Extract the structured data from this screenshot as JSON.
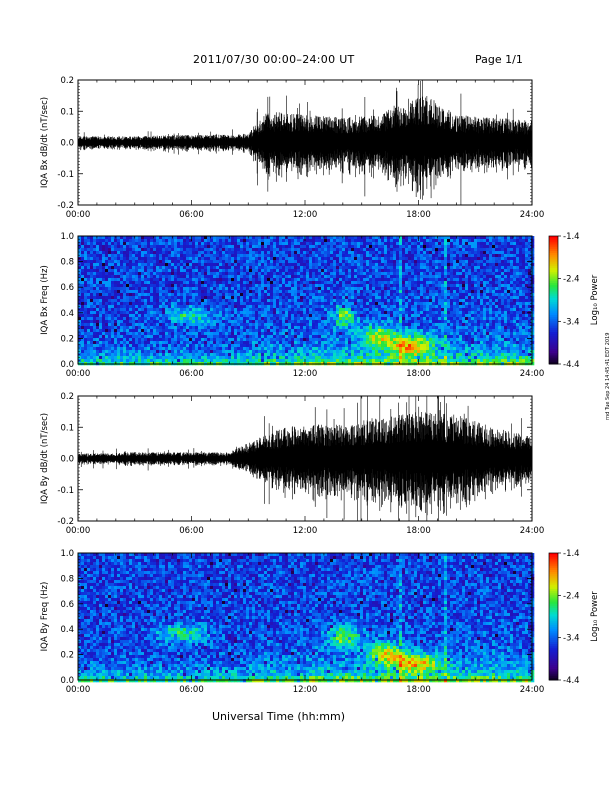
{
  "header": {
    "title": "2011/07/30  00:00–24:00 UT",
    "page": "Page 1/1"
  },
  "footer": {
    "xlabel": "Universal Time (hh:mm)",
    "stamp": "rnd Tue Sep 24 14:45:41 EDT 2019"
  },
  "chart_data": [
    {
      "type": "line",
      "ylabel": "IQA Bx dB/dt (nT/sec)",
      "xlim": [
        0,
        24
      ],
      "ylim": [
        -0.2,
        0.2
      ],
      "x_tick_labels": [
        "00:00",
        "06:00",
        "12:00",
        "18:00",
        "24:00"
      ],
      "y_ticks": [
        -0.2,
        -0.1,
        0.0,
        0.1,
        0.2
      ],
      "y_tick_labels": [
        "-0.2",
        "-0.1",
        "0.0",
        "0.1",
        "0.2"
      ],
      "envelope": {
        "hours": [
          0,
          3,
          6,
          8,
          9,
          9.7,
          10,
          12,
          14,
          16,
          17.5,
          18.5,
          20,
          22,
          24
        ],
        "amplitude": [
          0.02,
          0.02,
          0.025,
          0.025,
          0.03,
          0.08,
          0.1,
          0.09,
          0.08,
          0.09,
          0.15,
          0.15,
          0.09,
          0.08,
          0.07
        ]
      }
    },
    {
      "type": "heatmap",
      "ylabel": "IQA Bx Freq (Hz)",
      "xlim": [
        0,
        24
      ],
      "ylim": [
        0.0,
        1.0
      ],
      "x_tick_labels": [
        "00:00",
        "06:00",
        "12:00",
        "18:00",
        "24:00"
      ],
      "y_ticks": [
        0.0,
        0.2,
        0.4,
        0.6,
        0.8,
        1.0
      ],
      "y_tick_labels": [
        "0.0",
        "0.2",
        "0.4",
        "0.6",
        "0.8",
        "1.0"
      ],
      "colorbar": {
        "label": "Log₁₀ Power",
        "range": [
          -4.4,
          -1.4
        ],
        "ticks": [
          "-1.4",
          "-2.4",
          "-3.4",
          "-4.4"
        ]
      },
      "hot_spots": [
        {
          "t": 5.8,
          "f": 0.38,
          "v": 0.45,
          "st": 0.9,
          "sf": 0.05
        },
        {
          "t": 14.0,
          "f": 0.38,
          "v": 0.6,
          "st": 0.4,
          "sf": 0.06
        },
        {
          "t": 15.8,
          "f": 0.22,
          "v": 0.7,
          "st": 0.6,
          "sf": 0.06
        },
        {
          "t": 17.5,
          "f": 0.15,
          "v": 0.8,
          "st": 0.8,
          "sf": 0.06
        }
      ]
    },
    {
      "type": "line",
      "ylabel": "IQA By dB/dt (nT/sec)",
      "xlim": [
        0,
        24
      ],
      "ylim": [
        -0.2,
        0.2
      ],
      "x_tick_labels": [
        "00:00",
        "06:00",
        "12:00",
        "18:00",
        "24:00"
      ],
      "y_ticks": [
        -0.2,
        -0.1,
        0.0,
        0.1,
        0.2
      ],
      "y_tick_labels": [
        "-0.2",
        "-0.1",
        "0.0",
        "0.1",
        "0.2"
      ],
      "envelope": {
        "hours": [
          0,
          3,
          6,
          8,
          9,
          10,
          11,
          12,
          14,
          16,
          18,
          20,
          22,
          24
        ],
        "amplitude": [
          0.015,
          0.02,
          0.02,
          0.02,
          0.05,
          0.08,
          0.1,
          0.11,
          0.11,
          0.13,
          0.15,
          0.14,
          0.1,
          0.07
        ]
      }
    },
    {
      "type": "heatmap",
      "ylabel": "IQA By Freq (Hz)",
      "xlim": [
        0,
        24
      ],
      "ylim": [
        0.0,
        1.0
      ],
      "x_tick_labels": [
        "00:00",
        "06:00",
        "12:00",
        "18:00",
        "24:00"
      ],
      "y_ticks": [
        0.0,
        0.2,
        0.4,
        0.6,
        0.8,
        1.0
      ],
      "y_tick_labels": [
        "0.0",
        "0.2",
        "0.4",
        "0.6",
        "0.8",
        "1.0"
      ],
      "colorbar": {
        "label": "Log₁₀ Power",
        "range": [
          -4.4,
          -1.4
        ],
        "ticks": [
          "-1.4",
          "-2.4",
          "-3.4",
          "-4.4"
        ]
      },
      "hot_spots": [
        {
          "t": 5.5,
          "f": 0.38,
          "v": 0.45,
          "st": 1.0,
          "sf": 0.05
        },
        {
          "t": 14.0,
          "f": 0.35,
          "v": 0.6,
          "st": 0.6,
          "sf": 0.06
        },
        {
          "t": 16.2,
          "f": 0.22,
          "v": 0.65,
          "st": 0.7,
          "sf": 0.06
        },
        {
          "t": 17.8,
          "f": 0.15,
          "v": 0.8,
          "st": 0.9,
          "sf": 0.05
        }
      ]
    }
  ]
}
